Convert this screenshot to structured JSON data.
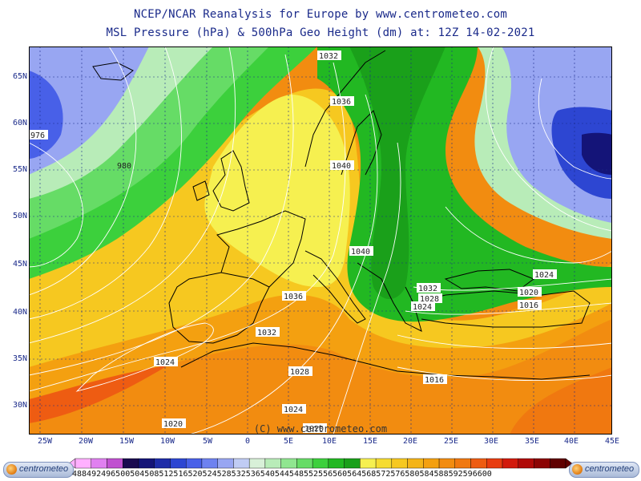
{
  "title_line1": "NCEP/NCAR Reanalysis for Europe by www.centrometeo.com",
  "title_line2": "MSL Pressure (hPa) & 500hPa Geo Height (dm) at: 12Z 14-02-2021",
  "copyright": "(C) www.centrometeo.com",
  "logo_text": "centrometeo",
  "lat_labels": [
    "65N",
    "60N",
    "55N",
    "50N",
    "45N",
    "40N",
    "35N",
    "30N"
  ],
  "lon_labels": [
    "25W",
    "20W",
    "15W",
    "10W",
    "5W",
    "0",
    "5E",
    "10E",
    "15E",
    "20E",
    "25E",
    "30E",
    "35E",
    "40E",
    "45E"
  ],
  "isobar_labels": [
    "1032",
    "1036",
    "1040",
    "1040",
    "1036",
    "1032",
    "1028",
    "1024",
    "1020",
    "1016",
    "1024",
    "1028",
    "1032",
    "1024",
    "1020",
    "976",
    "980",
    "1024",
    "1020",
    "1016"
  ],
  "colorbar": {
    "labels": "488492496500504508512516520524528532536540544548552556560564568572576580584588592596600",
    "colors": [
      "#ffb0ff",
      "#e080f0",
      "#c050d0",
      "#1a0a50",
      "#141478",
      "#1e2ca8",
      "#2d46d2",
      "#4860e8",
      "#6e82f0",
      "#98a6f2",
      "#c0ccf4",
      "#d8f0d8",
      "#b8ecb8",
      "#90e690",
      "#66dc66",
      "#3cd03c",
      "#22b822",
      "#1aa01a",
      "#f6f050",
      "#f6dc30",
      "#f6c820",
      "#f4b418",
      "#f4a010",
      "#f28c10",
      "#f07810",
      "#ee5c12",
      "#e83c10",
      "#d21a0c",
      "#b00a08",
      "#8c0404",
      "#600000"
    ]
  }
}
